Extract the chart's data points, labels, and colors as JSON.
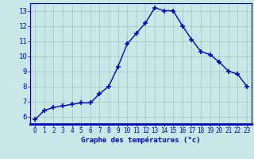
{
  "hours": [
    0,
    1,
    2,
    3,
    4,
    5,
    6,
    7,
    8,
    9,
    10,
    11,
    12,
    13,
    14,
    15,
    16,
    17,
    18,
    19,
    20,
    21,
    22,
    23
  ],
  "temperatures": [
    5.8,
    6.4,
    6.6,
    6.7,
    6.8,
    6.9,
    6.9,
    7.5,
    8.0,
    9.3,
    10.8,
    11.5,
    12.2,
    13.2,
    13.0,
    13.0,
    12.0,
    11.1,
    10.3,
    10.1,
    9.6,
    9.0,
    8.8,
    8.0
  ],
  "line_color": "#0000cc",
  "marker": "+",
  "bg_color": "#c8e8e8",
  "grid_color": "#a8c8c8",
  "xlabel": "Graphe des températures (°c)",
  "xlabel_color": "#0000cc",
  "tick_color": "#0000cc",
  "ylim": [
    5.5,
    13.5
  ],
  "yticks": [
    6,
    7,
    8,
    9,
    10,
    11,
    12,
    13
  ],
  "xlim": [
    -0.5,
    23.5
  ],
  "xticks": [
    0,
    1,
    2,
    3,
    4,
    5,
    6,
    7,
    8,
    9,
    10,
    11,
    12,
    13,
    14,
    15,
    16,
    17,
    18,
    19,
    20,
    21,
    22,
    23
  ],
  "linewidth": 1.0,
  "markersize": 4,
  "markeredgewidth": 1.2
}
